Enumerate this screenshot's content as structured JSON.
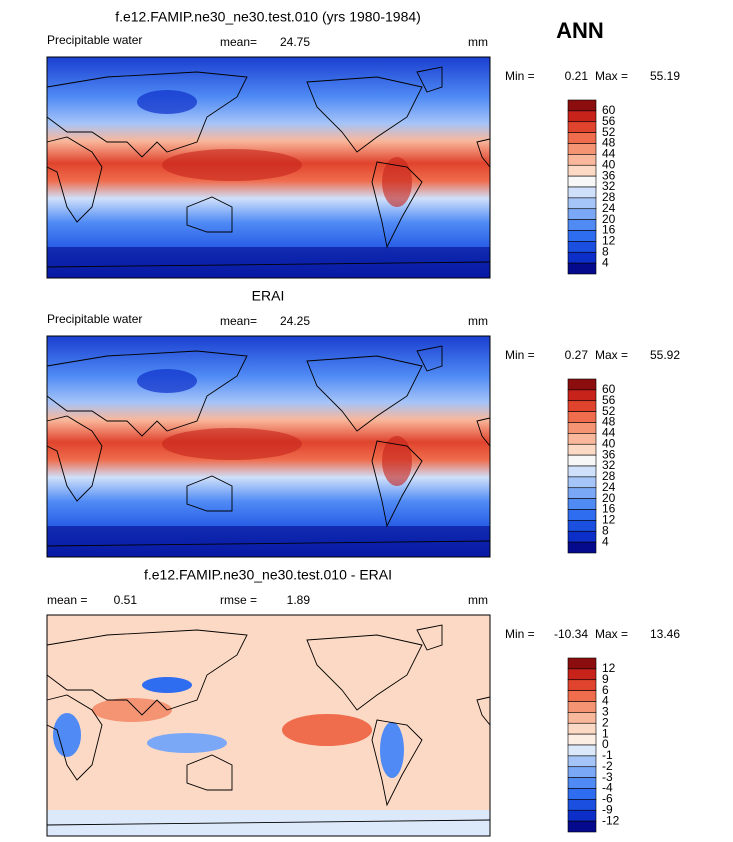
{
  "label": "ANN",
  "panels": [
    {
      "title": "f.e12.FAMIP.ne30_ne30.test.010 (yrs 1980-1984)",
      "variable": "Precipitable water",
      "stats": [
        {
          "label": "mean=",
          "value": 24.75
        }
      ],
      "units": "mm",
      "min_label": "Min =",
      "min": 0.21,
      "max_label": "Max =",
      "max": 55.19,
      "field": "absolute",
      "colorbar": {
        "labels": [
          60,
          56,
          52,
          48,
          44,
          40,
          36,
          32,
          28,
          24,
          20,
          16,
          12,
          8,
          4
        ],
        "colors": [
          "#8c0d0d",
          "#c7231a",
          "#e0442d",
          "#ef6c4c",
          "#f59473",
          "#f9b79b",
          "#fcd9c4",
          "#f7f7f7",
          "#cfe0fa",
          "#a5c4f8",
          "#7aa8f7",
          "#4f8af5",
          "#2e6cf0",
          "#1a4fe0",
          "#0d2fc9",
          "#050a8c"
        ]
      }
    },
    {
      "title": "ERAI",
      "variable": "Precipitable water",
      "stats": [
        {
          "label": "mean=",
          "value": 24.25
        }
      ],
      "units": "mm",
      "min_label": "Min =",
      "min": 0.27,
      "max_label": "Max =",
      "max": 55.92,
      "field": "absolute",
      "colorbar": {
        "labels": [
          60,
          56,
          52,
          48,
          44,
          40,
          36,
          32,
          28,
          24,
          20,
          16,
          12,
          8,
          4
        ],
        "colors": [
          "#8c0d0d",
          "#c7231a",
          "#e0442d",
          "#ef6c4c",
          "#f59473",
          "#f9b79b",
          "#fcd9c4",
          "#f7f7f7",
          "#cfe0fa",
          "#a5c4f8",
          "#7aa8f7",
          "#4f8af5",
          "#2e6cf0",
          "#1a4fe0",
          "#0d2fc9",
          "#050a8c"
        ]
      }
    },
    {
      "title": "f.e12.FAMIP.ne30_ne30.test.010 - ERAI",
      "stats": [
        {
          "label": "mean =",
          "value": 0.51
        },
        {
          "label": "rmse =",
          "value": 1.89
        }
      ],
      "units": "mm",
      "min_label": "Min =",
      "min": -10.34,
      "max_label": "Max =",
      "max": 13.46,
      "field": "difference",
      "colorbar": {
        "labels": [
          12,
          9,
          6,
          4,
          3,
          2,
          1,
          0,
          -1,
          -2,
          -3,
          -4,
          -6,
          -9,
          -12
        ],
        "colors": [
          "#8c0d0d",
          "#c7231a",
          "#e0442d",
          "#ef6c4c",
          "#f59473",
          "#f9b79b",
          "#fcd9c4",
          "#fdeee4",
          "#dce9fb",
          "#a5c4f8",
          "#7aa8f7",
          "#4f8af5",
          "#2e6cf0",
          "#1a4fe0",
          "#0d2fc9",
          "#050a8c"
        ]
      }
    }
  ]
}
